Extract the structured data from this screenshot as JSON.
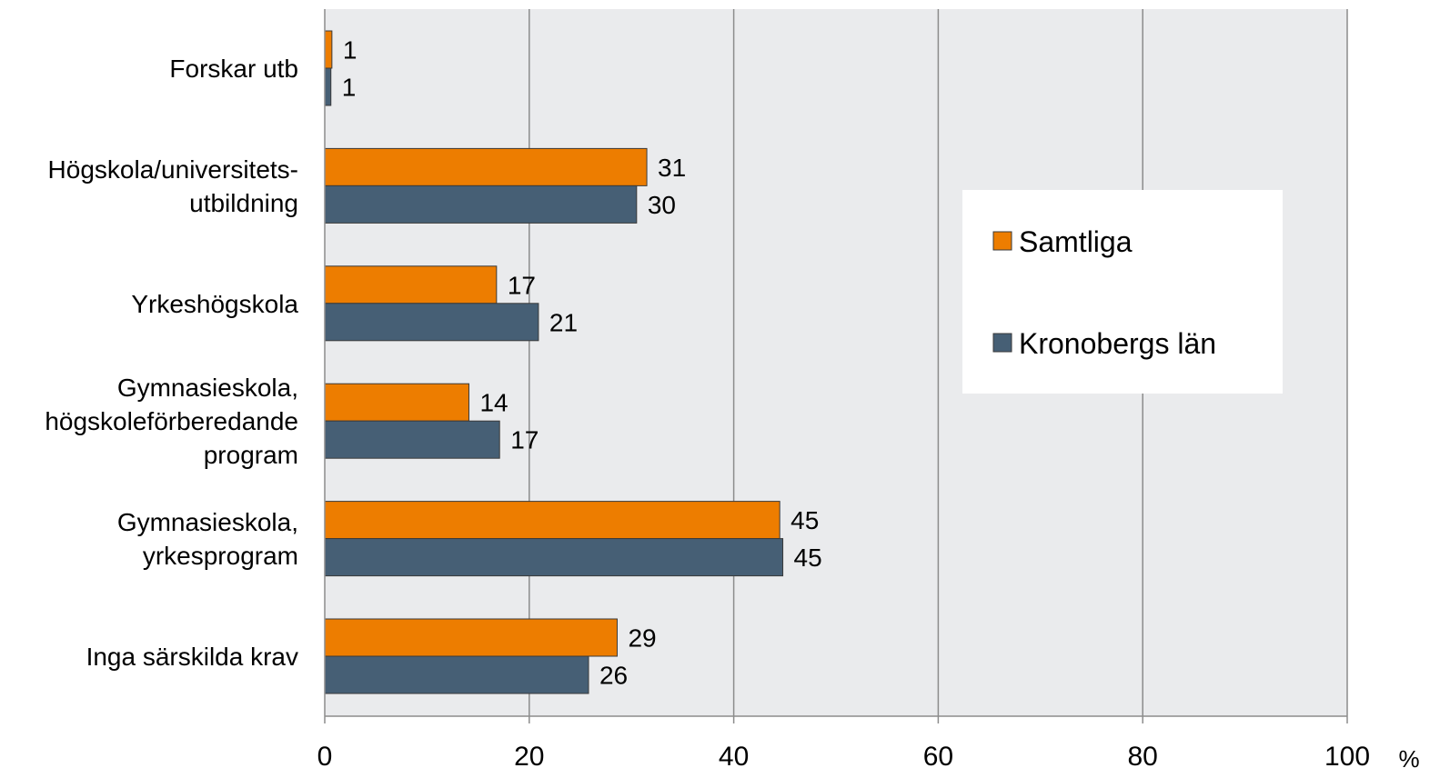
{
  "chart_data": {
    "type": "bar",
    "orientation": "horizontal",
    "categories": [
      [
        "Forskar utb"
      ],
      [
        "Högskola/universitets-",
        "utbildning"
      ],
      [
        "Yrkeshögskola"
      ],
      [
        "Gymnasieskola,",
        "högskoleförberedande",
        "program"
      ],
      [
        "Gymnasieskola,",
        "yrkesprogram"
      ],
      [
        "Inga särskilda krav"
      ]
    ],
    "series": [
      {
        "name": "Samtliga",
        "color": "#ED7D00",
        "values": [
          1,
          31,
          17,
          14,
          45,
          29
        ],
        "plot_values": [
          0.7,
          31.5,
          16.8,
          14.1,
          44.5,
          28.6
        ]
      },
      {
        "name": "Kronobergs län",
        "color": "#465F75",
        "values": [
          1,
          30,
          21,
          17,
          45,
          26
        ],
        "plot_values": [
          0.6,
          30.5,
          20.9,
          17.1,
          44.8,
          25.8
        ]
      }
    ],
    "xlim": [
      0,
      100
    ],
    "xticks": [
      0,
      20,
      40,
      60,
      80,
      100
    ],
    "x_unit": "%",
    "grid": true,
    "legend_position": "right",
    "plot_background": "#EAEBED"
  }
}
